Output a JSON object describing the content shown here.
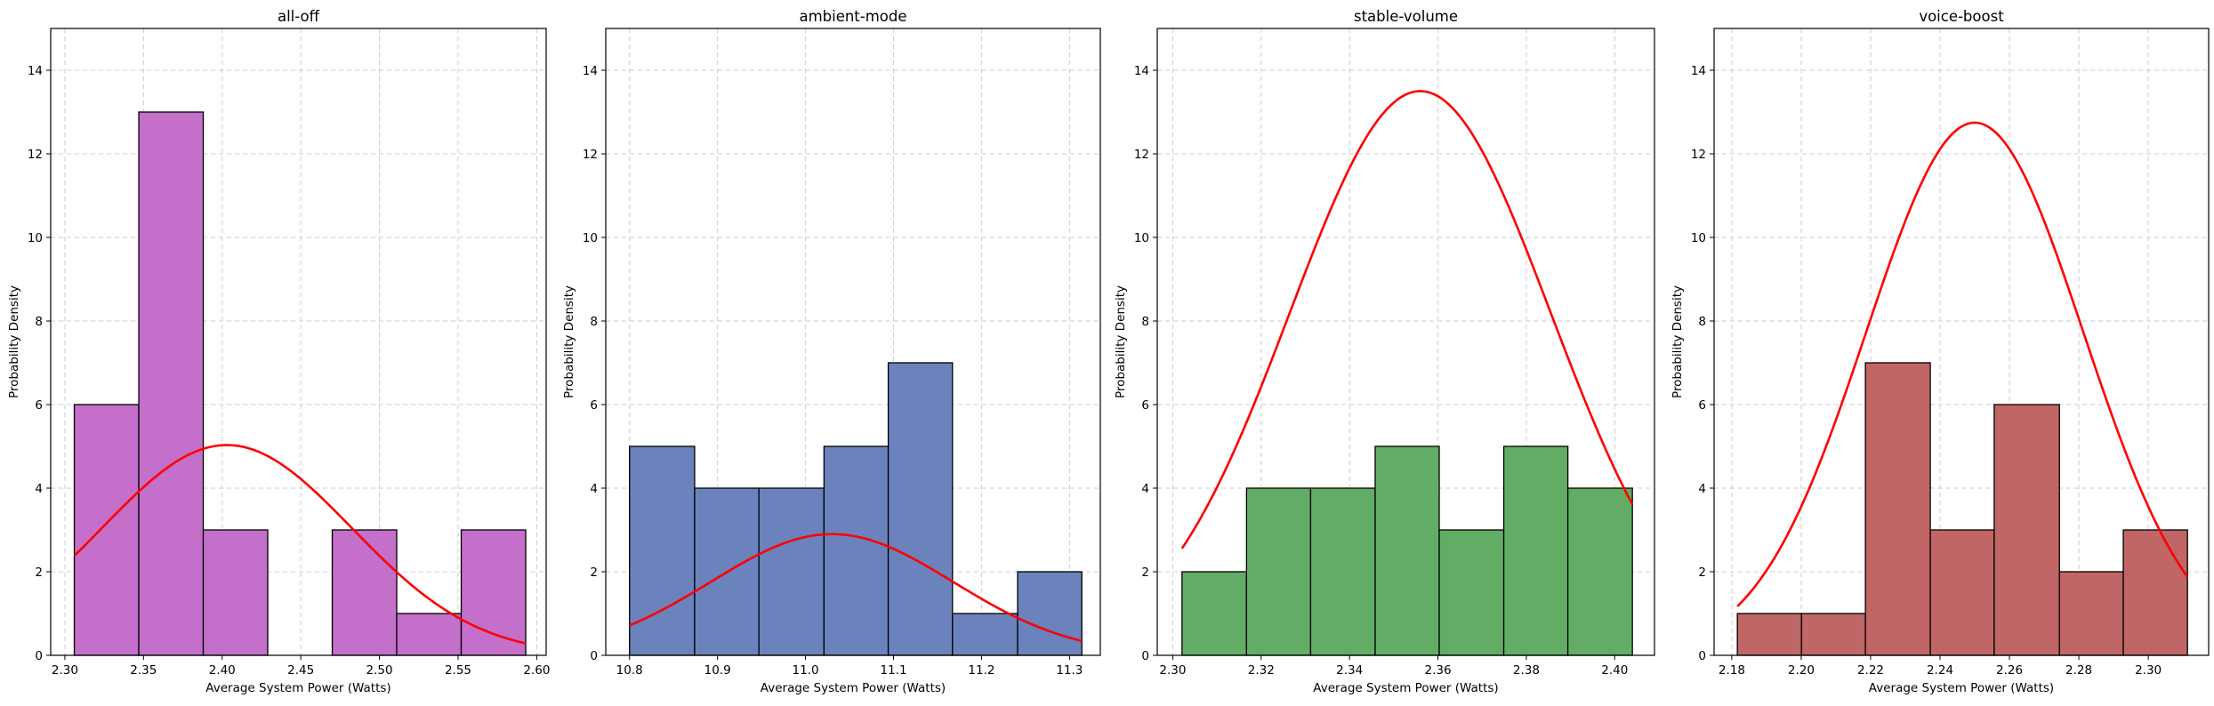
{
  "chart_data": [
    {
      "type": "bar",
      "subtype": "histogram",
      "title": "all-off",
      "xlabel": "Average System Power (Watts)",
      "ylabel": "Probability Density",
      "xlim": [
        2.291,
        2.606
      ],
      "ylim": [
        0,
        15
      ],
      "xticks": [
        "2.30",
        "2.35",
        "2.40",
        "2.45",
        "2.50",
        "2.55",
        "2.60"
      ],
      "yticks": [
        "0",
        "2",
        "4",
        "6",
        "8",
        "10",
        "12",
        "14"
      ],
      "bin_edges": [
        2.306,
        2.347,
        2.388,
        2.429,
        2.47,
        2.511,
        2.552,
        2.593
      ],
      "values": [
        6,
        13,
        3,
        0,
        3,
        1,
        3
      ],
      "color": "#C46FC9",
      "normal_fit": {
        "mean": 2.403,
        "std": 0.0793,
        "color": "#FF0000"
      },
      "grid": true
    },
    {
      "type": "bar",
      "subtype": "histogram",
      "title": "ambient-mode",
      "xlabel": "Average System Power (Watts)",
      "ylabel": "Probability Density",
      "xlim": [
        10.773,
        11.335
      ],
      "ylim": [
        0,
        15
      ],
      "xticks": [
        "10.8",
        "10.9",
        "11.0",
        "11.1",
        "11.2",
        "11.3"
      ],
      "yticks": [
        "0",
        "2",
        "4",
        "6",
        "8",
        "10",
        "12",
        "14"
      ],
      "bin_edges": [
        10.8,
        10.874,
        10.947,
        11.021,
        11.094,
        11.167,
        11.241,
        11.314
      ],
      "values": [
        5,
        4,
        4,
        5,
        7,
        1,
        2
      ],
      "color": "#6B82BD",
      "normal_fit": {
        "mean": 11.03,
        "std": 0.1376,
        "color": "#FF0000"
      },
      "grid": true
    },
    {
      "type": "bar",
      "subtype": "histogram",
      "title": "stable-volume",
      "xlabel": "Average System Power (Watts)",
      "ylabel": "Probability Density",
      "xlim": [
        2.2965,
        2.409
      ],
      "ylim": [
        0,
        15
      ],
      "xticks": [
        "2.30",
        "2.32",
        "2.34",
        "2.36",
        "2.38",
        "2.40"
      ],
      "yticks": [
        "0",
        "2",
        "4",
        "6",
        "8",
        "10",
        "12",
        "14"
      ],
      "bin_edges": [
        2.3021,
        2.3167,
        2.3312,
        2.3458,
        2.3603,
        2.3749,
        2.3894,
        2.404
      ],
      "values": [
        2,
        4,
        4,
        5,
        3,
        5,
        4
      ],
      "color": "#62AC66",
      "normal_fit": {
        "mean": 2.356,
        "std": 0.02955,
        "color": "#FF0000"
      },
      "grid": true
    },
    {
      "type": "bar",
      "subtype": "histogram",
      "title": "voice-boost",
      "xlabel": "Average System Power (Watts)",
      "ylabel": "Probability Density",
      "xlim": [
        2.1749,
        2.3174
      ],
      "ylim": [
        0,
        15
      ],
      "xticks": [
        "2.18",
        "2.20",
        "2.22",
        "2.24",
        "2.26",
        "2.28",
        "2.30"
      ],
      "yticks": [
        "0",
        "2",
        "4",
        "6",
        "8",
        "10",
        "12",
        "14"
      ],
      "bin_edges": [
        2.1816,
        2.2001,
        2.2185,
        2.2372,
        2.2556,
        2.2744,
        2.2928,
        2.3113
      ],
      "values": [
        1,
        1,
        7,
        3,
        6,
        2,
        3
      ],
      "color": "#C06666",
      "normal_fit": {
        "mean": 2.25,
        "std": 0.0313,
        "color": "#FF0000"
      },
      "grid": true
    }
  ]
}
